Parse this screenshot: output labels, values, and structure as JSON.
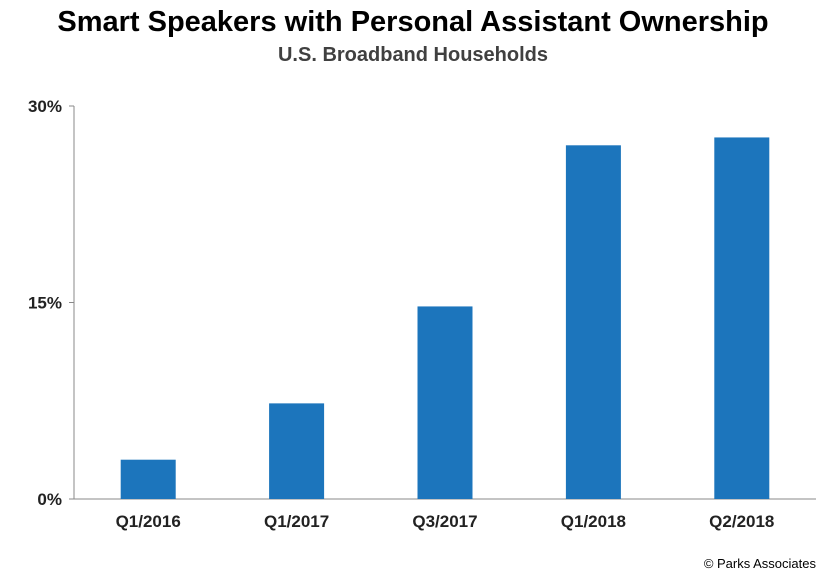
{
  "chart_data": {
    "type": "bar",
    "title": "Smart Speakers with Personal Assistant Ownership",
    "subtitle": "U.S. Broadband Households",
    "categories": [
      "Q1/2016",
      "Q1/2017",
      "Q3/2017",
      "Q1/2018",
      "Q2/2018"
    ],
    "values": [
      3.0,
      7.3,
      14.7,
      27.0,
      27.6
    ],
    "ylim": [
      0,
      30
    ],
    "yticks": [
      0,
      15,
      30
    ],
    "ytick_labels": [
      "0%",
      "15%",
      "30%"
    ],
    "xlabel": "",
    "ylabel": "",
    "grid": false,
    "bar_color": "#1c75bc"
  },
  "credit": "© Parks Associates"
}
